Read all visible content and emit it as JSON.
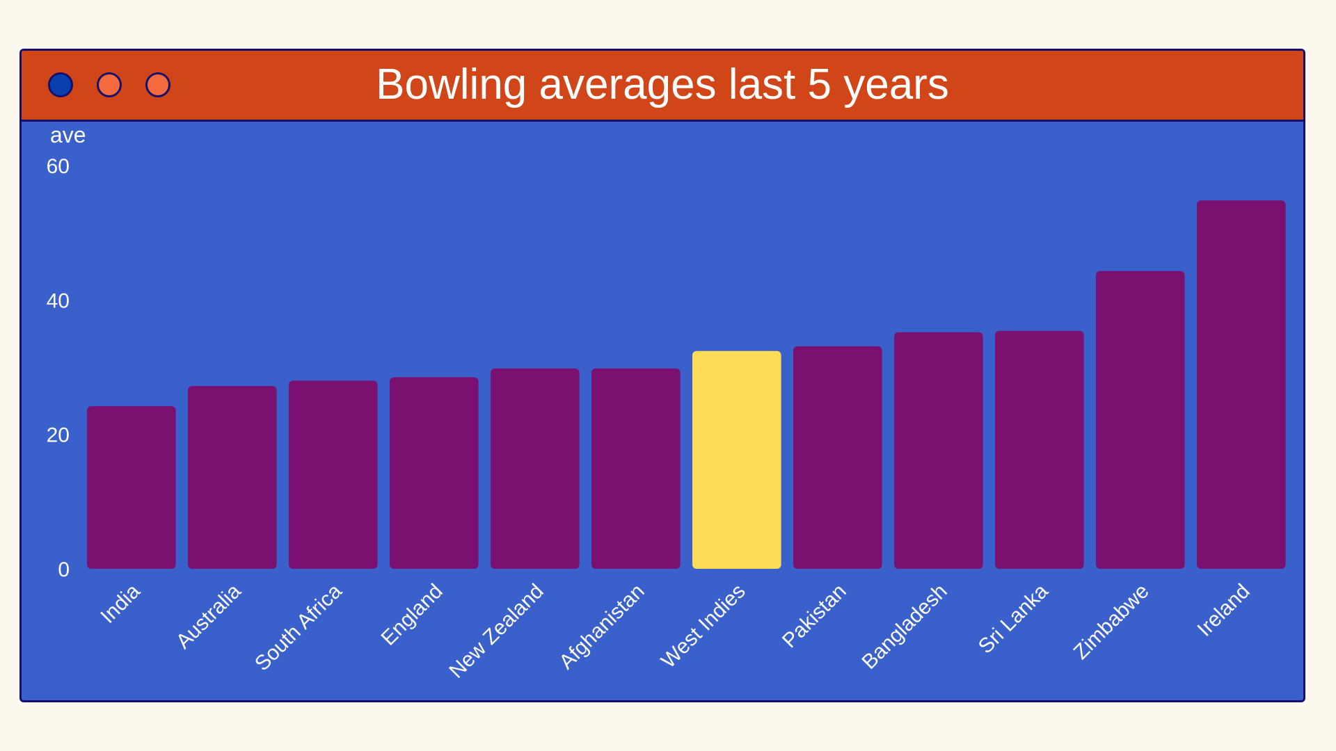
{
  "window": {
    "controls": [
      {
        "name": "close",
        "color": "#0a3fb0"
      },
      {
        "name": "minimize",
        "color": "#f26a3e"
      },
      {
        "name": "maximize",
        "color": "#f26a3e"
      }
    ]
  },
  "colors": {
    "background": "#fdf8ee",
    "panel": "#3a60cc",
    "titlebar": "#d14618",
    "border": "#16106b",
    "bar": "#7a1170",
    "highlight": "#ffdb5a",
    "text": "#ffffff"
  },
  "chart_data": {
    "type": "bar",
    "title": "Bowling averages last 5 years",
    "xlabel": "",
    "ylabel": "ave",
    "ylim": [
      0,
      60
    ],
    "yticks": [
      0,
      20,
      40,
      60
    ],
    "grid": false,
    "legend": "none",
    "categories": [
      "India",
      "Australia",
      "South Africa",
      "England",
      "New Zealand",
      "Afghanistan",
      "West Indies",
      "Pakistan",
      "Bangladesh",
      "Sri Lanka",
      "Zimbabwe",
      "Ireland"
    ],
    "values": [
      24.2,
      27.2,
      28.0,
      28.5,
      29.8,
      29.8,
      32.4,
      33.1,
      35.2,
      35.4,
      44.3,
      54.8
    ],
    "highlight": "West Indies"
  }
}
